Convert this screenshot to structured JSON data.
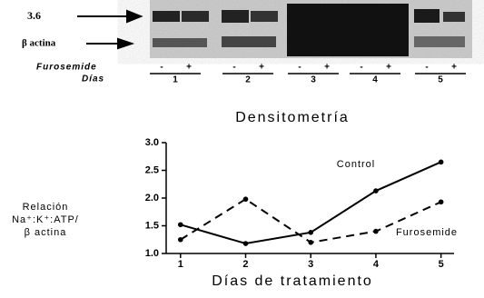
{
  "blot": {
    "markers": [
      "3.6",
      "β actina"
    ],
    "treatment_label": "Furosemide",
    "days_label": "Días",
    "treatment": [
      "-",
      "+",
      "-",
      "+",
      "-",
      "+",
      "-",
      "+",
      "-",
      "+"
    ],
    "days": [
      "1",
      "2",
      "3",
      "4",
      "5"
    ]
  },
  "chart_data": {
    "type": "line",
    "title": "Densitometría",
    "y_label": [
      "Relación",
      "Na⁺:K⁺:ATP/",
      "β actina"
    ],
    "x_label": "Días de tratamiento",
    "x": [
      1,
      2,
      3,
      4,
      5
    ],
    "xlim": [
      0.78,
      5.2
    ],
    "xticks": [
      1,
      2,
      3,
      4,
      5
    ],
    "ylim": [
      1.0,
      3.0
    ],
    "yticks": [
      {
        "value": 1,
        "label": "1.0"
      },
      1.5,
      {
        "value": 2,
        "label": "2.0"
      },
      2.5,
      {
        "value": 3,
        "label": "3.0"
      }
    ],
    "series": [
      {
        "name": "Control",
        "color": "#000000",
        "line_style": "solid",
        "values": [
          1.52,
          1.18,
          1.38,
          2.13,
          2.65
        ]
      },
      {
        "name": "Furosemide",
        "color": "#000000",
        "line_style": "dashed",
        "values": [
          1.25,
          1.98,
          1.2,
          1.4,
          1.93
        ]
      }
    ]
  }
}
